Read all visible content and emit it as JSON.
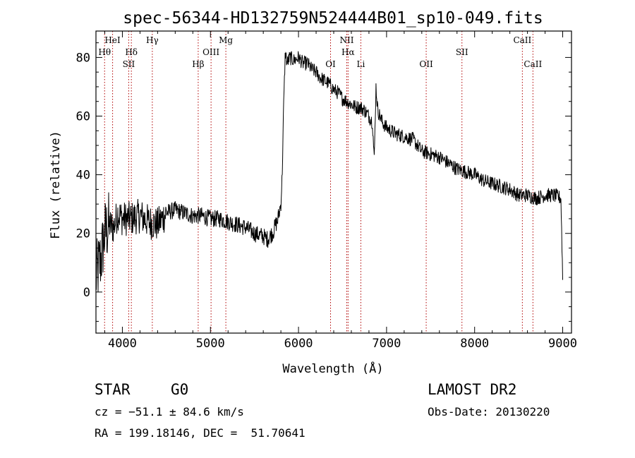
{
  "chart_data": {
    "type": "line",
    "title": "spec-56344-HD132759N524444B01_sp10-049.fits",
    "xlabel": "Wavelength (Å)",
    "ylabel": "Flux (relative)",
    "xlim": [
      3700,
      9100
    ],
    "ylim": [
      -14,
      89
    ],
    "xticks": [
      4000,
      5000,
      6000,
      7000,
      8000,
      9000
    ],
    "yticks": [
      0,
      20,
      40,
      60,
      80
    ],
    "line_color": "#000000",
    "marker_color": "#b00000",
    "series": [
      {
        "x": [
          3700,
          3760,
          3800,
          3850,
          3900,
          3950,
          4000,
          4100,
          4200,
          4300,
          4400,
          4500,
          4600,
          4700,
          4800,
          4900,
          5000,
          5100,
          5200,
          5300,
          5400,
          5500,
          5600,
          5650,
          5700,
          5720,
          5740,
          5760,
          5780,
          5800,
          5815,
          5830,
          5850,
          5870,
          5900,
          5950,
          6000,
          6050,
          6100,
          6150,
          6200,
          6250,
          6300,
          6350,
          6400,
          6450,
          6500,
          6550,
          6600,
          6650,
          6700,
          6750,
          6800,
          6840,
          6860,
          6880,
          6900,
          6950,
          7000,
          7100,
          7200,
          7300,
          7400,
          7500,
          7600,
          7700,
          7800,
          7900,
          8000,
          8100,
          8200,
          8300,
          8400,
          8500,
          8600,
          8700,
          8800,
          8900,
          8980,
          9000
        ],
        "y": [
          5,
          12,
          20,
          23,
          22,
          27,
          25,
          25,
          26,
          24,
          23,
          27,
          28,
          27,
          26,
          26,
          25,
          25,
          24,
          23,
          22,
          20,
          19,
          18,
          20,
          21,
          23,
          24,
          27,
          30,
          40,
          62,
          82,
          78,
          80,
          79,
          80,
          78,
          78,
          76,
          75,
          73,
          72,
          71,
          69,
          68,
          66,
          65,
          64,
          63,
          63,
          62,
          60,
          58,
          45,
          70,
          62,
          58,
          56,
          54,
          53,
          52,
          48,
          47,
          46,
          44,
          42,
          41,
          40,
          38,
          37,
          36,
          35,
          33,
          33,
          32,
          33,
          33,
          32,
          5
        ]
      }
    ],
    "lines": [
      {
        "x": 3798,
        "label": "Hθ",
        "tier": 1
      },
      {
        "x": 3889,
        "label": "HeI",
        "tier": 0
      },
      {
        "x": 4072,
        "label": "SII",
        "tier": 2
      },
      {
        "x": 4102,
        "label": "Hδ",
        "tier": 1
      },
      {
        "x": 4340,
        "label": "Hγ",
        "tier": 0
      },
      {
        "x": 4861,
        "label": "Hβ",
        "tier": 2
      },
      {
        "x": 5007,
        "label": "OIII",
        "tier": 1
      },
      {
        "x": 5175,
        "label": "Mg",
        "tier": 0
      },
      {
        "x": 6364,
        "label": "OI",
        "tier": 2
      },
      {
        "x": 6548,
        "label": "NII",
        "tier": 0
      },
      {
        "x": 6563,
        "label": "Hα",
        "tier": 1
      },
      {
        "x": 6708,
        "label": "Li",
        "tier": 2
      },
      {
        "x": 7450,
        "label": "OII",
        "tier": 2
      },
      {
        "x": 7856,
        "label": "SII",
        "tier": 1
      },
      {
        "x": 8542,
        "label": "CaII",
        "tier": 0
      },
      {
        "x": 8662,
        "label": "CaII",
        "tier": 2
      }
    ]
  },
  "info": {
    "object_class": "STAR",
    "subclass": "G0",
    "survey": "LAMOST DR2",
    "redshift": "cz = −51.1 ± 84.6 km/s",
    "obs_date": "Obs-Date: 20130220",
    "coords": "RA = 199.18146, DEC =  51.70641"
  }
}
